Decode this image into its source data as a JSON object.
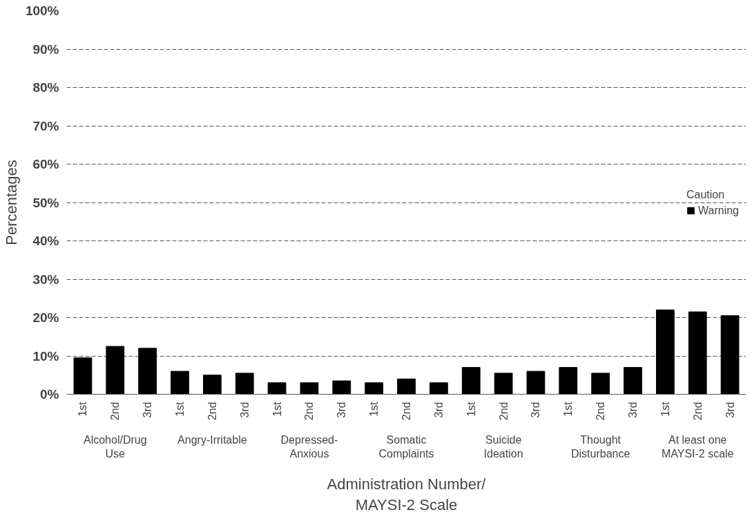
{
  "chart_data": {
    "type": "bar",
    "legend_title": "Caution",
    "categories": [
      "1st",
      "2nd",
      "3rd",
      "1st",
      "2nd",
      "3rd",
      "1st",
      "2nd",
      "3rd",
      "1st",
      "2nd",
      "3rd",
      "1st",
      "2nd",
      "3rd",
      "1st",
      "2nd",
      "3rd",
      "1st",
      "2nd",
      "3rd"
    ],
    "series": [
      {
        "name": "Warning",
        "color": "#000000",
        "values": [
          9.5,
          12.5,
          12,
          6,
          5,
          5.5,
          3,
          3,
          3.5,
          3,
          4,
          3,
          7,
          5.5,
          6,
          7,
          5.5,
          7,
          22,
          21.5,
          20.5
        ]
      }
    ],
    "annotations": [
      "Alcohol/Drug Use",
      "Angry-Irritable",
      "Depressed-Anxious",
      "Somatic Complaints",
      "Suicide Ideation",
      "Thought Disturbance",
      "At least one MAYSI-2 scale"
    ],
    "xlabel": "Administration Number/\nMAYSI-2 Scale",
    "ylabel": "Percentages",
    "ylim": [
      0,
      100
    ],
    "yticks": [
      {
        "value": 0,
        "label": "0%"
      },
      {
        "value": 10,
        "label": "10%"
      },
      {
        "value": 20,
        "label": "20%"
      },
      {
        "value": 30,
        "label": "30%"
      },
      {
        "value": 40,
        "label": "40%"
      },
      {
        "value": 50,
        "label": "50%"
      },
      {
        "value": 60,
        "label": "60%"
      },
      {
        "value": 70,
        "label": "70%"
      },
      {
        "value": 80,
        "label": "80%"
      },
      {
        "value": 90,
        "label": "90%"
      },
      {
        "value": 100,
        "label": "100%"
      }
    ],
    "grid": "y",
    "legend": "right"
  }
}
